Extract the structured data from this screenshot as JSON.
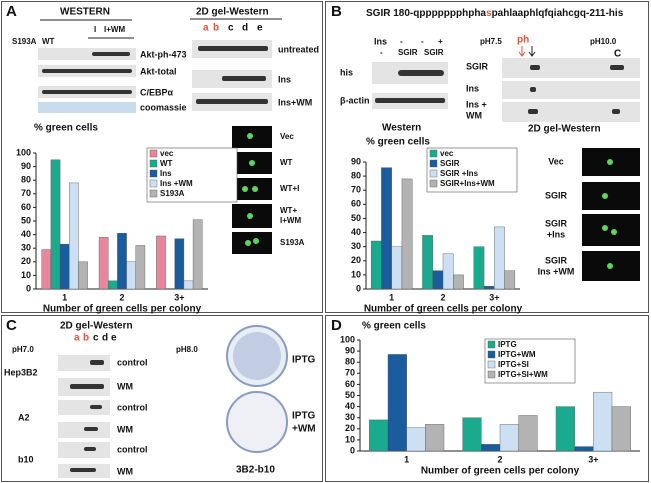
{
  "chart_data": [
    {
      "type": "bar",
      "title": "% green cells",
      "x_label": "Number of green cells per colony",
      "categories": [
        "1",
        "2",
        "3+"
      ],
      "series": [
        {
          "name": "vec",
          "color": "#e8869c",
          "values": [
            29,
            38,
            39
          ]
        },
        {
          "name": "WT",
          "color": "#1aab8f",
          "values": [
            95,
            6,
            0
          ]
        },
        {
          "name": "Ins",
          "color": "#1a5c9e",
          "values": [
            33,
            41,
            37
          ]
        },
        {
          "name": "Ins +WM",
          "color": "#cddff2",
          "values": [
            78,
            20,
            6
          ]
        },
        {
          "name": "S193A",
          "color": "#b3b3b3",
          "values": [
            20,
            32,
            51
          ]
        }
      ],
      "ylim": [
        0,
        100
      ],
      "yticks": [
        0,
        10,
        20,
        30,
        40,
        50,
        60,
        70,
        80,
        90,
        100
      ]
    },
    {
      "type": "bar",
      "title": "% green cells",
      "x_label": "Number of green cells per colony",
      "categories": [
        "1",
        "2",
        "3+"
      ],
      "series": [
        {
          "name": "vec",
          "color": "#1aab8f",
          "values": [
            34,
            38,
            30
          ]
        },
        {
          "name": "SGIR",
          "color": "#1a5c9e",
          "values": [
            86,
            13,
            2
          ]
        },
        {
          "name": "SGIR +Ins",
          "color": "#cddff2",
          "values": [
            30,
            25,
            44
          ]
        },
        {
          "name": "SGIR+Ins+WM",
          "color": "#b3b3b3",
          "values": [
            78,
            10,
            13
          ]
        }
      ],
      "ylim": [
        0,
        90
      ],
      "yticks": [
        0,
        10,
        20,
        30,
        40,
        50,
        60,
        70,
        80,
        90
      ]
    },
    {
      "type": "bar",
      "title": "% green cells",
      "x_label": "Number of green cells per colony",
      "categories": [
        "1",
        "2",
        "3+"
      ],
      "series": [
        {
          "name": "IPTG",
          "color": "#1aab8f",
          "values": [
            28,
            30,
            40
          ]
        },
        {
          "name": "IPTG+WM",
          "color": "#1a5c9e",
          "values": [
            87,
            6,
            4
          ]
        },
        {
          "name": "IPTG+SI",
          "color": "#cddff2",
          "values": [
            21,
            24,
            53
          ]
        },
        {
          "name": "IPTG+SI+WM",
          "color": "#b3b3b3",
          "values": [
            24,
            32,
            40
          ]
        }
      ],
      "ylim": [
        0,
        100
      ],
      "yticks": [
        0,
        10,
        20,
        30,
        40,
        50,
        60,
        70,
        80,
        90,
        100
      ]
    }
  ],
  "panel_a": {
    "label": "A",
    "western_title": "WESTERN",
    "lanes": [
      "S193A",
      "WT",
      "I",
      "I+WM"
    ],
    "blot_labels": [
      "Akt-ph-473",
      "Akt-total",
      "C/EBPα",
      "coomassie"
    ],
    "gel_title": "2D gel-Western",
    "gel_lanes": [
      "a",
      "b",
      "c",
      "d",
      "e"
    ],
    "gel_rows": [
      "untreated",
      "Ins",
      "Ins+WM"
    ],
    "image_labels": [
      [
        "Vec"
      ],
      [
        "WT"
      ],
      [
        "WT+I"
      ],
      [
        "WT+",
        "I+WM"
      ],
      [
        "S193A"
      ]
    ]
  },
  "panel_b": {
    "label": "B",
    "title_start": "SGIR 180-qppppppphpha",
    "title_mark": "s",
    "title_end": "pahlaaphlqfqiahcgq-211-his",
    "ins_label": "Ins",
    "ins_row": [
      "-",
      "-",
      "+"
    ],
    "lane_row": [
      "-",
      "SGIR",
      "SGIR"
    ],
    "blot_labels": [
      "his",
      "β-actin"
    ],
    "western_title": "Western",
    "ph_left": "pH7.5",
    "ph_mark": "ph",
    "ph_right": "pH10.0",
    "c_mark": "C",
    "gel_rows": [
      [
        "SGIR"
      ],
      [
        "Ins"
      ],
      [
        "Ins +",
        "WM"
      ]
    ],
    "gel_title": "2D gel-Western",
    "image_labels": [
      [
        "Vec"
      ],
      [
        "SGIR"
      ],
      [
        "SGIR",
        "+Ins"
      ],
      [
        "SGIR",
        "Ins +WM"
      ]
    ]
  },
  "panel_c": {
    "label": "C",
    "gel_title": "2D gel-Western",
    "ph_left": "pH7.0",
    "ph_right": "pH8.0",
    "gel_lanes": [
      "a",
      "b",
      "c",
      "d",
      "e"
    ],
    "lines": [
      {
        "name": "Hep3B2",
        "rows": [
          "control",
          "WM"
        ]
      },
      {
        "name": "A2",
        "rows": [
          "control",
          "WM"
        ]
      },
      {
        "name": "b10",
        "rows": [
          "control",
          "WM"
        ]
      }
    ],
    "dish_labels": [
      [
        "IPTG"
      ],
      [
        "IPTG",
        "+WM"
      ]
    ],
    "dish_caption": "3B2-b10"
  },
  "panel_d": {
    "label": "D"
  }
}
